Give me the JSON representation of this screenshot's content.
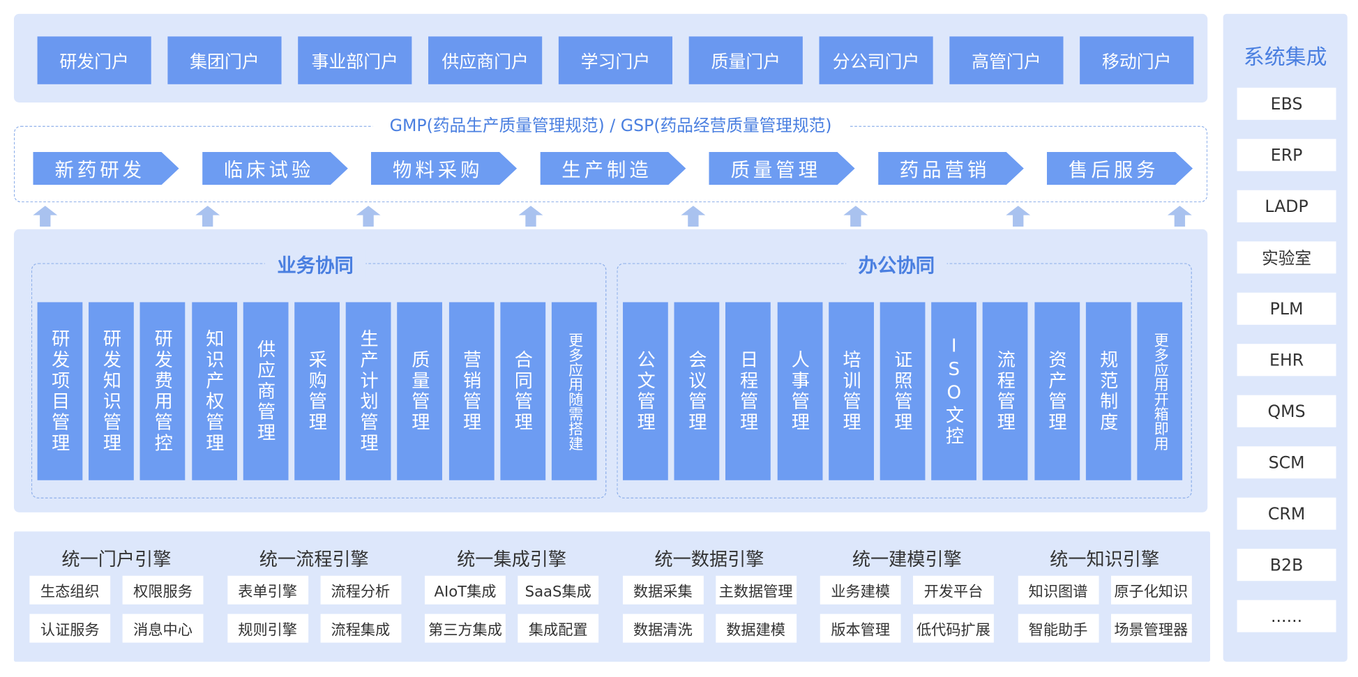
{
  "portals": [
    "研发门户",
    "集团门户",
    "事业部门户",
    "供应商门户",
    "学习门户",
    "质量门户",
    "分公司门户",
    "高管门户",
    "移动门户"
  ],
  "standards": "GMP(药品生产质量管理规范) / GSP(药品经营质量管理规范)",
  "process": [
    "新药研发",
    "临床试验",
    "物料采购",
    "生产制造",
    "质量管理",
    "药品营销",
    "售后服务"
  ],
  "business": {
    "title": "业务协同",
    "items": [
      "研发项目管理",
      "研发知识管理",
      "研发费用管控",
      "知识产权管理",
      "供应商管理",
      "采购管理",
      "生产计划管理",
      "质量管理",
      "营销管理",
      "合同管理",
      "更多应用随需搭建"
    ]
  },
  "office": {
    "title": "办公协同",
    "items": [
      "公文管理",
      "会议管理",
      "日程管理",
      "人事管理",
      "培训管理",
      "证照管理",
      "ISO文控",
      "流程管理",
      "资产管理",
      "规范制度",
      "更多应用开箱即用"
    ]
  },
  "engines": [
    {
      "title": "统一门户引擎",
      "items": [
        "生态组织",
        "权限服务",
        "认证服务",
        "消息中心"
      ]
    },
    {
      "title": "统一流程引擎",
      "items": [
        "表单引擎",
        "流程分析",
        "规则引擎",
        "流程集成"
      ]
    },
    {
      "title": "统一集成引擎",
      "items": [
        "AIoT集成",
        "SaaS集成",
        "第三方集成",
        "集成配置"
      ]
    },
    {
      "title": "统一数据引擎",
      "items": [
        "数据采集",
        "主数据管理",
        "数据清洗",
        "数据建模"
      ]
    },
    {
      "title": "统一建模引擎",
      "items": [
        "业务建模",
        "开发平台",
        "版本管理",
        "低代码扩展"
      ]
    },
    {
      "title": "统一知识引擎",
      "items": [
        "知识图谱",
        "原子化知识",
        "智能助手",
        "场景管理器"
      ]
    }
  ],
  "integration": {
    "title": "系统集成",
    "items": [
      "EBS",
      "ERP",
      "LADP",
      "实验室",
      "PLM",
      "EHR",
      "QMS",
      "SCM",
      "CRM",
      "B2B",
      "......"
    ]
  }
}
